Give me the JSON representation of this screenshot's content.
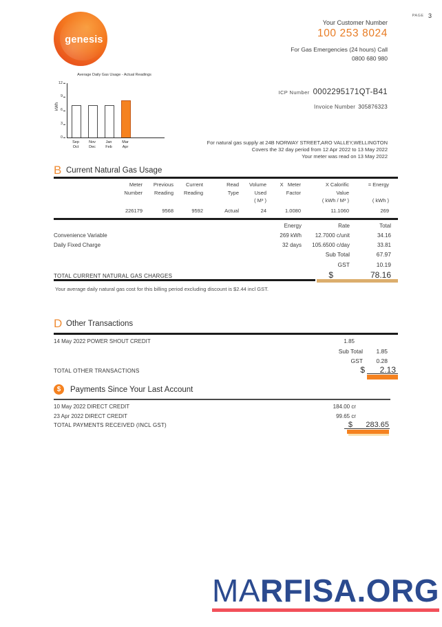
{
  "page": {
    "page_label": "PAGE",
    "page_number": "3"
  },
  "brand": {
    "logo_text": "genesis",
    "orange": "#F58220"
  },
  "header": {
    "customer_number_label": "Your Customer Number",
    "customer_number": "100 253 8024",
    "emergency_line": "For Gas Emergencies (24 hours) Call",
    "emergency_phone": "0800 680 980",
    "icp_label": "ICP  Number",
    "icp_value": "0002295171QT-B41",
    "invoice_label": "Invoice  Number",
    "invoice_value": "305876323",
    "supply_line1": "For natural gas supply at 24B NORWAY STREET,ARO VALLEY,WELLINGTON",
    "supply_line2": "Covers the 32 day period from 12 Apr 2022 to 13 May 2022",
    "supply_line3": "Your meter was read on 13 May 2022"
  },
  "chart_data": {
    "type": "bar",
    "title": "Average Daily Gas Usage - Actual Readings",
    "ylabel": "kWh",
    "ylim": [
      0,
      12
    ],
    "yticks": [
      0,
      3,
      6,
      9,
      12
    ],
    "categories": [
      "Sep\nOct",
      "Nov\nDec",
      "Jan\nFeb",
      "Mar\nApr"
    ],
    "values": [
      7.1,
      7.1,
      7.1,
      8.2
    ],
    "highlight_index": 3,
    "bar_fill": "#ffffff",
    "highlight_fill": "#F58220",
    "legend": "none",
    "grid": "off"
  },
  "section_b": {
    "letter": "B",
    "title": "Current Natural Gas Usage",
    "meter_table": {
      "headers": [
        "Meter\nNumber",
        "Previous\nReading",
        "Current\nReading",
        "Read\nType",
        "Volume\nUsed\n( M³ )",
        "X   Meter\nFactor",
        "X Calorific\nValue\n( kWh / M³ )",
        "= Energy\n\n( kWh )"
      ],
      "row": [
        "226179",
        "9568",
        "9592",
        "Actual",
        "24",
        "1.0080",
        "11.1060",
        "269"
      ]
    },
    "charges": {
      "col_headers": [
        "Energy",
        "Rate",
        "Total"
      ],
      "rows": [
        {
          "label": "Convenience Variable",
          "energy": "269 kWh",
          "rate": "12.7000 c/unit",
          "total": "34.16"
        },
        {
          "label": "Daily Fixed Charge",
          "energy": "32 days",
          "rate": "105.6500 c/day",
          "total": "33.81"
        }
      ],
      "subtotal_label": "Sub Total",
      "subtotal": "67.97",
      "gst_label": "GST",
      "gst": "10.19",
      "total_label": "TOTAL CURRENT NATURAL GAS CHARGES",
      "currency": "$",
      "total": "78.16"
    },
    "note": "Your average daily natural gas cost for this billing period excluding discount is $2.44 incl GST."
  },
  "section_d": {
    "letter": "D",
    "title": "Other Transactions",
    "rows": [
      {
        "label": "14 May 2022 POWER SHOUT CREDIT",
        "amount": "1.85"
      }
    ],
    "subtotal_label": "Sub Total",
    "subtotal": "1.85",
    "gst_label": "GST",
    "gst": "0.28",
    "total_label": "TOTAL OTHER TRANSACTIONS",
    "currency": "$",
    "total": "2.13"
  },
  "payments": {
    "icon_symbol": "$",
    "title": "Payments Since Your Last Account",
    "rows": [
      {
        "label": "10 May 2022 DIRECT CREDIT",
        "amount": "184.00 cr"
      },
      {
        "label": "23 Apr 2022 DIRECT CREDIT",
        "amount": "99.65 cr"
      }
    ],
    "total_label": "TOTAL PAYMENTS RECEIVED (INCL GST)",
    "currency": "$",
    "total": "283.65"
  },
  "watermark": {
    "text_light": "MA",
    "text_bold": "RFISA.ORG",
    "text_color": "#2b4a8f",
    "underline_color": "#f2505a"
  }
}
